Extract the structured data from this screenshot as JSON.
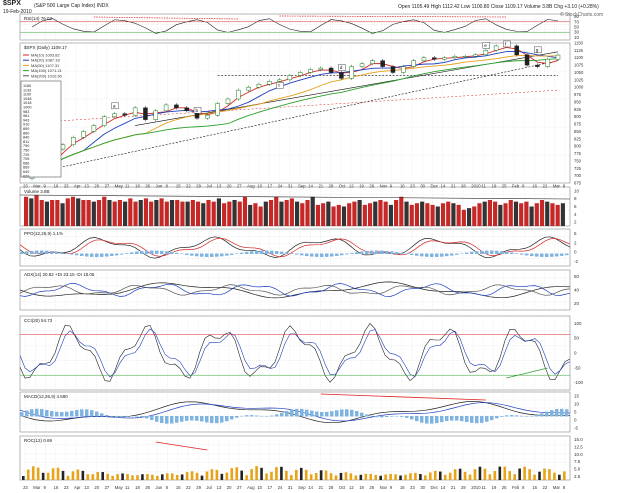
{
  "header": {
    "symbol": "$SPX",
    "name": "(S&P 500 Large Cap Index) INDX",
    "date": "19-Feb-2010",
    "quote": "Open 1105.49  High 1112.42  Low 1100.80  Close 1109.17  Volume 3.8B  Chg +3.10 (+0.28%)",
    "watermark": "© StockCharts.com"
  },
  "colors": {
    "price_up": "#1f7a1f",
    "price_down": "#222222",
    "ma_red": "#d62728",
    "ma_blue": "#1f3fbf",
    "ma_orange": "#e6a11a",
    "ma_green": "#2ca02c",
    "vol_up": "#333333",
    "vol_down": "#c62828",
    "macd_hist": "#7fb3e0",
    "vol_bottom": "#e8a317",
    "annotation": "#e02020",
    "grid": "#dddddd"
  },
  "chart_data": [
    {
      "panel": "rsi",
      "type": "line",
      "label": "RSI(14) 76.02",
      "ylim": [
        0,
        100
      ],
      "ticks": [
        "90",
        "70",
        "50",
        "30",
        "10"
      ]
    },
    {
      "panel": "price",
      "type": "candlestick",
      "label": "$SPX (Daily) 1109.17",
      "legend": [
        "MA(10) 1093.82",
        "MA(20) 1087.18",
        "MA(50) 1107.31",
        "MA(150) 1071.21",
        "MA(200) 1010.50"
      ],
      "x_ticks": [
        "23",
        "Mar",
        "9",
        "16",
        "23",
        "Apr",
        "13",
        "20",
        "27",
        "May",
        "11",
        "18",
        "26",
        "Jun",
        "8",
        "15",
        "22",
        "29",
        "Jul",
        "13",
        "20",
        "27",
        "Aug",
        "10",
        "17",
        "24",
        "31",
        "Sep",
        "14",
        "21",
        "28",
        "Oct",
        "12",
        "19",
        "26",
        "Nov",
        "9",
        "16",
        "23",
        "30",
        "Dec",
        "14",
        "21",
        "28",
        "2010",
        "11",
        "19",
        "25",
        "Feb",
        "8",
        "16",
        "22",
        "Mar",
        "8"
      ],
      "price_ticks": [
        "1150",
        "1125",
        "1100",
        "1075",
        "1050",
        "1025",
        "1000",
        "975",
        "950",
        "925",
        "900",
        "875",
        "850",
        "825",
        "800",
        "775",
        "750",
        "725",
        "700",
        "675"
      ],
      "ylim": [
        675,
        1150
      ],
      "close": [
        700,
        735,
        790,
        805,
        830,
        850,
        870,
        900,
        910,
        905,
        930,
        890,
        920,
        940,
        930,
        920,
        895,
        905,
        945,
        960,
        990,
        1000,
        1010,
        1020,
        1025,
        1040,
        1050,
        1060,
        1065,
        1050,
        1030,
        1070,
        1080,
        1090,
        1070,
        1050,
        1070,
        1090,
        1100,
        1095,
        1100,
        1105,
        1105,
        1110,
        1125,
        1140,
        1140,
        1110,
        1075,
        1070,
        1095,
        1109
      ],
      "annotations": [
        "a",
        "b",
        "c",
        "d",
        "e",
        "f",
        "g"
      ],
      "fib_levels": [
        "1160",
        "1133",
        "1100",
        "1048",
        "1018",
        "1000",
        "983",
        "961",
        "943",
        "910",
        "890",
        "860",
        "840",
        "811",
        "790",
        "750",
        "725",
        "705",
        "686",
        "669",
        "640",
        "620"
      ]
    },
    {
      "panel": "volume",
      "type": "bar",
      "label": "Volume 3.8B",
      "ylim": [
        0,
        12
      ],
      "ticks": [
        "10",
        "8",
        "6",
        "4",
        "2"
      ],
      "values": [
        9,
        8.5,
        9.5,
        8,
        7.5,
        8,
        8,
        7,
        8.5,
        9,
        8.5,
        8,
        8,
        7.5,
        8,
        9,
        8,
        7.5,
        8,
        7.5,
        8.5,
        7.5,
        8,
        8.5,
        7.5,
        8,
        8.5,
        7.5,
        8,
        8,
        7.5,
        7.5,
        8,
        7.5,
        7,
        8,
        7.5,
        8.5,
        7,
        7.5,
        8,
        7.5,
        9,
        6.5,
        7,
        6,
        7.5,
        8,
        9,
        7.5,
        8,
        8.5,
        7.5,
        7,
        8,
        9,
        6.5,
        7,
        7.5,
        6,
        6.5,
        6,
        7,
        7.5,
        8,
        6.5,
        7,
        7.5,
        8,
        7.5,
        6.5,
        8,
        9,
        7.5,
        6.5,
        7,
        7.5,
        7,
        6.5,
        6,
        7,
        7.5,
        7,
        6.5,
        5,
        5.5,
        6,
        7,
        7.5,
        8,
        7.5,
        6.5,
        7,
        8,
        7.5,
        7,
        7.5,
        6,
        7,
        8,
        7.5,
        7,
        6.5,
        7
      ]
    },
    {
      "panel": "ppo",
      "type": "line",
      "label": "PPO(12,26,9) 1.1%",
      "ticks": [
        "5",
        "2",
        "0",
        "-2"
      ]
    },
    {
      "panel": "adx",
      "type": "line",
      "label": "ADX(14) 20.82  +DI 23.15  -DI 18.05",
      "ticks": [
        "60",
        "40",
        "20"
      ]
    },
    {
      "panel": "williams",
      "type": "line",
      "label": "CCI(20) 54.73",
      "ticks": [
        "100",
        "50",
        "0",
        "-50",
        "-100"
      ]
    },
    {
      "panel": "macd",
      "type": "line",
      "label": "MACD(12,26,9) 4.590",
      "ticks": [
        "15",
        "10",
        "5",
        "0",
        "-5"
      ]
    },
    {
      "panel": "roc",
      "type": "bar",
      "label": "ROC(12) 0.69",
      "ticks": [
        "15.0",
        "12.5",
        "10.0",
        "7.5",
        "5.0",
        "2.5"
      ]
    }
  ]
}
